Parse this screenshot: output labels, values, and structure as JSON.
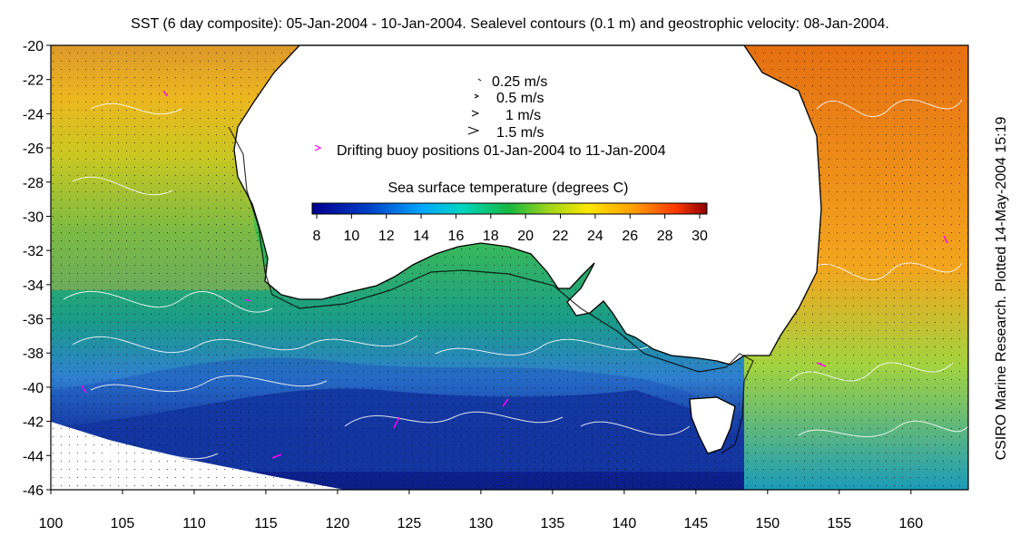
{
  "title": "SST (6 day composite): 05-Jan-2004 - 10-Jan-2004. Sealevel contours (0.1 m) and geostrophic velocity: 08-Jan-2004.",
  "credit": "CSIRO Marine Research. Plotted 14-May-2004 15:19",
  "map": {
    "lon_range": [
      100,
      164
    ],
    "lat_range": [
      -46,
      -20
    ],
    "lon_ticks": [
      "100",
      "105",
      "110",
      "115",
      "120",
      "125",
      "130",
      "135",
      "140",
      "145",
      "150",
      "155",
      "160"
    ],
    "lat_ticks": [
      "-20",
      "-22",
      "-24",
      "-26",
      "-28",
      "-30",
      "-32",
      "-34",
      "-36",
      "-38",
      "-40",
      "-42",
      "-44",
      "-46"
    ]
  },
  "legend": {
    "velocity": [
      "0.25 m/s",
      "0.5 m/s",
      "1 m/s",
      "1.5 m/s"
    ],
    "buoy": "Drifting buoy positions 01-Jan-2004 to 11-Jan-2004",
    "sst_title": "Sea surface temperature (degrees C)",
    "sst_ticks": [
      "8",
      "10",
      "12",
      "14",
      "16",
      "18",
      "20",
      "22",
      "24",
      "26",
      "28",
      "30"
    ]
  },
  "colors": {
    "cold": "#00008f",
    "mid": "#1fcf6f",
    "warm": "#ff8a20",
    "hot": "#8f0000",
    "land": "#ffffff",
    "coast": "#000000",
    "contour": "#ffffff",
    "buoy": "#ff00ff"
  }
}
